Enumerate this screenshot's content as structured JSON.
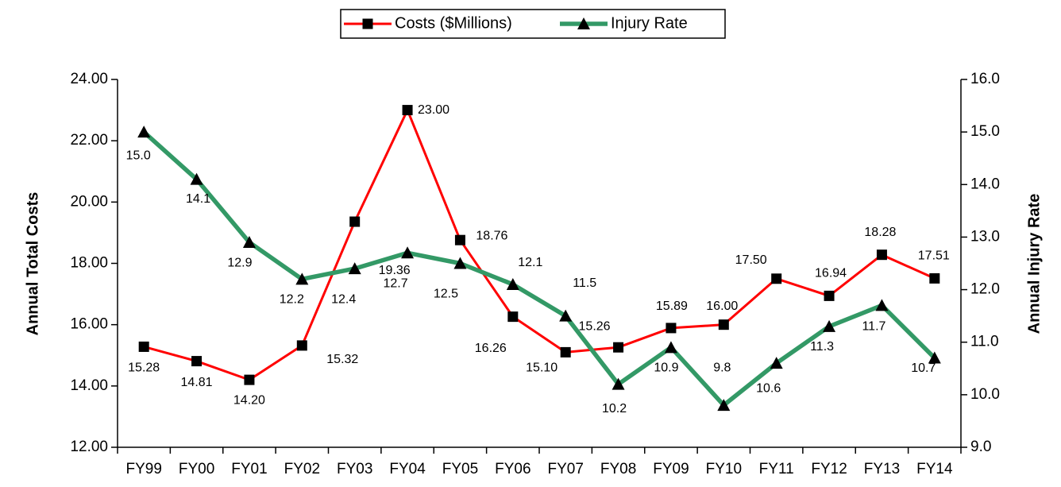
{
  "chart_data": {
    "type": "line",
    "categories": [
      "FY99",
      "FY00",
      "FY01",
      "FY02",
      "FY03",
      "FY04",
      "FY05",
      "FY06",
      "FY07",
      "FY08",
      "FY09",
      "FY10",
      "FY11",
      "FY12",
      "FY13",
      "FY14"
    ],
    "series": [
      {
        "name": "Costs ($Millions)",
        "color": "#ff0000",
        "marker": "square",
        "axis": "y",
        "values": [
          15.28,
          14.81,
          14.2,
          15.32,
          19.36,
          23.0,
          18.76,
          16.26,
          15.1,
          15.26,
          15.89,
          16.0,
          17.5,
          16.94,
          18.28,
          17.51
        ],
        "value_labels": [
          "15.28",
          "14.81",
          "14.20",
          "15.32",
          "19.36",
          "23.00",
          "18.76",
          "16.26",
          "15.10",
          "15.26",
          "15.89",
          "16.00",
          "17.50",
          "16.94",
          "18.28",
          "17.51"
        ]
      },
      {
        "name": "Injury Rate",
        "color": "#339966",
        "marker": "triangle",
        "axis": "y2",
        "values": [
          15.0,
          14.1,
          12.9,
          12.2,
          12.4,
          12.7,
          12.5,
          12.1,
          11.5,
          10.2,
          10.9,
          9.8,
          10.6,
          11.3,
          11.7,
          10.7
        ],
        "value_labels": [
          "15.0",
          "14.1",
          "12.9",
          "12.2",
          "12.4",
          "12.7",
          "12.5",
          "12.1",
          "11.5",
          "10.2",
          "10.9",
          "9.8",
          "10.6",
          "11.3",
          "11.7",
          "10.7"
        ]
      }
    ],
    "y_label": "Annual Total Costs",
    "y2_label": "Annual Injury Rate",
    "ylim": [
      12,
      24
    ],
    "yticks": [
      {
        "value": 12,
        "label": "12.00"
      },
      {
        "value": 14,
        "label": "14.00"
      },
      {
        "value": 16,
        "label": "16.00"
      },
      {
        "value": 18,
        "label": "18.00"
      },
      {
        "value": 20,
        "label": "20.00"
      },
      {
        "value": 22,
        "label": "22.00"
      },
      {
        "value": 24,
        "label": "24.00"
      }
    ],
    "y2lim": [
      9,
      16
    ],
    "y2ticks": [
      {
        "value": 9,
        "label": "9.0"
      },
      {
        "value": 10,
        "label": "10.0"
      },
      {
        "value": 11,
        "label": "11.0"
      },
      {
        "value": 12,
        "label": "12.0"
      },
      {
        "value": 13,
        "label": "13.0"
      },
      {
        "value": 14,
        "label": "14.0"
      },
      {
        "value": 15,
        "label": "15.0"
      },
      {
        "value": 16,
        "label": "16.0"
      }
    ],
    "grid": false,
    "legend": "top"
  }
}
